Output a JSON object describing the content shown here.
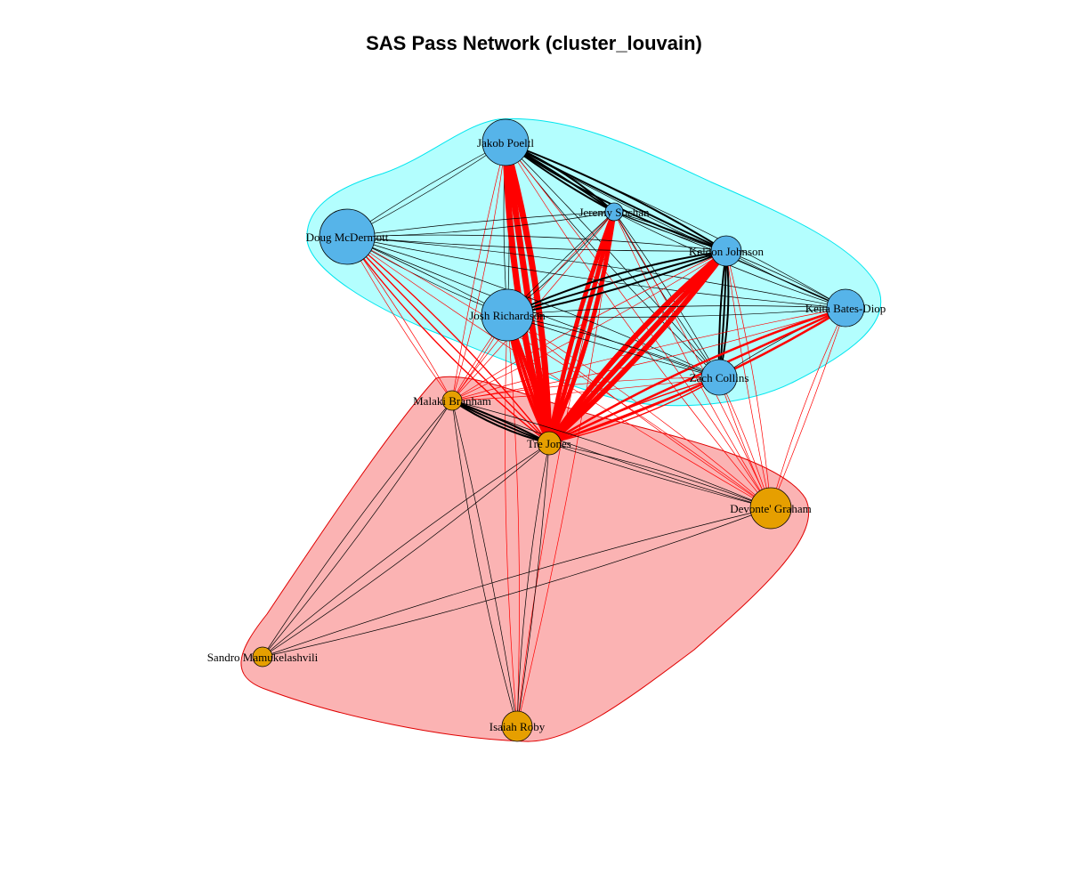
{
  "title": "SAS Pass Network (cluster_louvain)",
  "colors": {
    "cluster_blue_fill": "#b3fefe",
    "cluster_blue_border": "#00e5ee",
    "cluster_red_fill": "#fbb3b3",
    "cluster_red_border": "#e00000",
    "node_blue": "#56b4e9",
    "node_orange": "#e69f00",
    "edge_between": "#ff0000",
    "edge_within": "#000000"
  },
  "clusters": [
    {
      "id": "blue",
      "members": [
        "Jakob Poeltl",
        "Jeremy Sochan",
        "Doug McDermott",
        "Keldon Johnson",
        "Keita Bates-Diop",
        "Josh Richardson",
        "Zach Collins"
      ]
    },
    {
      "id": "orange",
      "members": [
        "Malaki Branham",
        "Tre Jones",
        "Devonte' Graham",
        "Sandro Mamukelashvili",
        "Isaiah Roby"
      ]
    }
  ],
  "nodes": [
    {
      "name": "Jakob Poeltl",
      "group": "blue"
    },
    {
      "name": "Jeremy Sochan",
      "group": "blue"
    },
    {
      "name": "Doug McDermott",
      "group": "blue"
    },
    {
      "name": "Keldon Johnson",
      "group": "blue"
    },
    {
      "name": "Keita Bates-Diop",
      "group": "blue"
    },
    {
      "name": "Josh Richardson",
      "group": "blue"
    },
    {
      "name": "Zach Collins",
      "group": "blue"
    },
    {
      "name": "Malaki Branham",
      "group": "orange"
    },
    {
      "name": "Tre Jones",
      "group": "orange"
    },
    {
      "name": "Devonte' Graham",
      "group": "orange"
    },
    {
      "name": "Sandro Mamukelashvili",
      "group": "orange"
    },
    {
      "name": "Isaiah Roby",
      "group": "orange"
    }
  ]
}
